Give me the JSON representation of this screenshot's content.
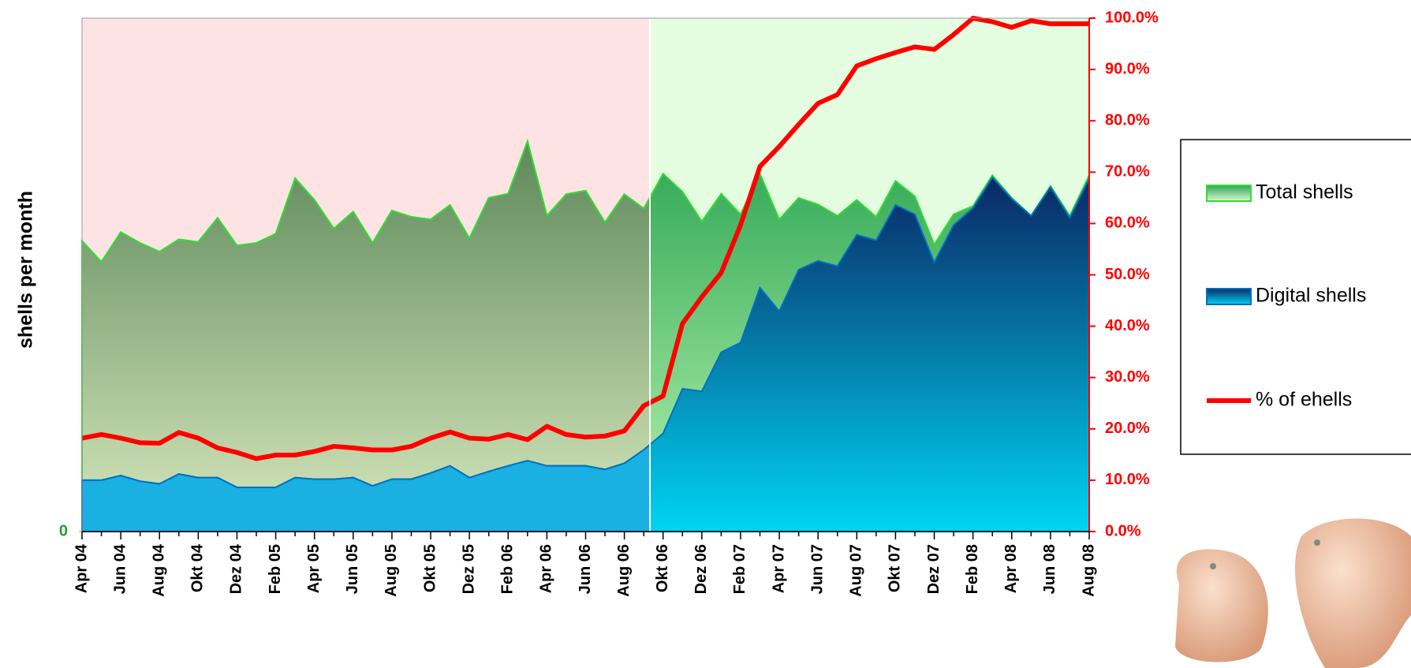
{
  "chart_data": {
    "type": "area",
    "y_label": "shells per month",
    "categories": [
      "Apr 04",
      null,
      "Jun 04",
      null,
      "Aug 04",
      null,
      "Okt 04",
      null,
      "Dez 04",
      null,
      "Feb 05",
      null,
      "Apr 05",
      null,
      "Jun 05",
      null,
      "Aug 05",
      null,
      "Okt 05",
      null,
      "Dez 05",
      null,
      "Feb 06",
      null,
      "Apr 06",
      null,
      "Jun 06",
      null,
      "Aug 06",
      null,
      "Okt 06",
      null,
      "Dez 06",
      null,
      "Feb 07",
      null,
      "Apr 07",
      null,
      "Jun 07",
      null,
      "Aug 07",
      null,
      "Okt 07",
      null,
      "Dez 07",
      null,
      "Feb 08",
      null,
      "Apr 08",
      null,
      "Jun 08",
      null,
      "Aug 08"
    ],
    "ylim": [
      0,
      100
    ],
    "yticks": [
      0
    ],
    "y2lim": [
      0,
      100
    ],
    "y2ticks": [
      {
        "value": 0,
        "label": "0.0%"
      },
      {
        "value": 10,
        "label": "10.0%"
      },
      {
        "value": 20,
        "label": "20.0%"
      },
      {
        "value": 30,
        "label": "30.0%"
      },
      {
        "value": 40,
        "label": "40.0%"
      },
      {
        "value": 50,
        "label": "50.0%"
      },
      {
        "value": 60,
        "label": "60.0%"
      },
      {
        "value": 70,
        "label": "70.0%"
      },
      {
        "value": 80,
        "label": "80.0%"
      },
      {
        "value": 90,
        "label": "90.0%"
      },
      {
        "value": 100,
        "label": "100.0%"
      }
    ],
    "legend": "right",
    "series": [
      {
        "name": "Total shells",
        "color": "#33dd33",
        "values": [
          56.6,
          52.5,
          58.3,
          56.2,
          54.5,
          56.9,
          56.4,
          61.1,
          55.7,
          56.2,
          58.0,
          68.8,
          64.6,
          59.0,
          62.3,
          56.2,
          62.5,
          61.3,
          60.8,
          63.6,
          57.1,
          65.0,
          65.8,
          76.0,
          61.5,
          65.7,
          66.4,
          60.2,
          65.7,
          62.9,
          69.7,
          66.2,
          60.4,
          65.8,
          61.8,
          69.7,
          60.8,
          65.0,
          63.7,
          61.5,
          64.6,
          61.3,
          68.3,
          65.3,
          55.9,
          61.8,
          63.4,
          69.4,
          65.0,
          61.5,
          67.3,
          61.5,
          69.4
        ]
      },
      {
        "name": "Digital shells",
        "color": "#0070c0",
        "values": [
          10.0,
          10.0,
          10.9,
          9.8,
          9.3,
          11.2,
          10.5,
          10.5,
          8.6,
          8.6,
          8.6,
          10.5,
          10.2,
          10.2,
          10.5,
          8.9,
          10.2,
          10.2,
          11.4,
          12.8,
          10.5,
          11.7,
          12.8,
          13.8,
          12.8,
          12.8,
          12.8,
          12.1,
          13.3,
          15.9,
          19.1,
          27.8,
          27.3,
          34.9,
          36.8,
          47.5,
          42.9,
          51.0,
          52.7,
          51.7,
          57.8,
          56.7,
          63.6,
          61.8,
          52.4,
          59.7,
          63.0,
          69.0,
          64.8,
          61.5,
          67.1,
          61.1,
          68.8
        ]
      },
      {
        "name": "% of ehells",
        "color": "#ff0000",
        "axis": "y2",
        "values": [
          18.2,
          18.9,
          18.2,
          17.3,
          17.2,
          19.3,
          18.2,
          16.3,
          15.4,
          14.2,
          14.9,
          14.9,
          15.6,
          16.6,
          16.3,
          15.9,
          15.9,
          16.6,
          18.2,
          19.4,
          18.2,
          18.0,
          18.9,
          17.9,
          20.5,
          18.9,
          18.4,
          18.6,
          19.6,
          24.5,
          26.4,
          40.5,
          45.7,
          50.4,
          59.7,
          71.1,
          75.0,
          79.3,
          83.4,
          85.1,
          90.7,
          92.1,
          93.3,
          94.4,
          93.9,
          96.8,
          100.0,
          99.3,
          98.2,
          99.5,
          98.9,
          98.9,
          98.9
        ]
      }
    ]
  }
}
